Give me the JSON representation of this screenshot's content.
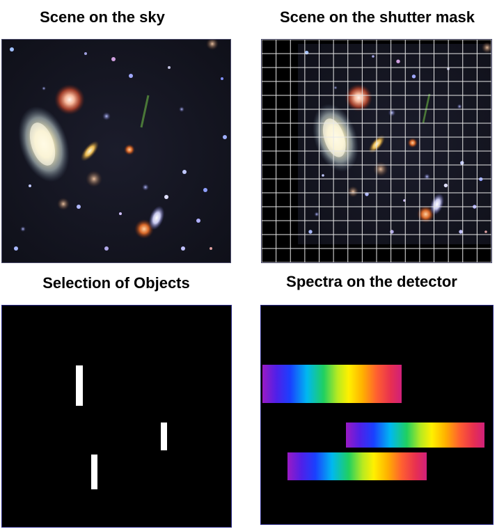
{
  "titles": {
    "sky": "Scene on the sky",
    "mask": "Scene on the shutter mask",
    "selection": "Selection of Objects",
    "detector": "Spectra on the detector"
  },
  "colors": {
    "background": "#ffffff",
    "panel_fill": "#000000",
    "grid_line": "#e8e8e8",
    "slit": "#ffffff",
    "spectrum_gradient": [
      "#9a1ac4",
      "#5020e8",
      "#1a40ff",
      "#00b8f0",
      "#20d060",
      "#b8ea20",
      "#fff000",
      "#ffb000",
      "#ff6030",
      "#e83050",
      "#d0207a"
    ]
  },
  "mask_grid": {
    "columns": 16,
    "rows": 16
  },
  "selection": {
    "slit_count": 3
  },
  "detector": {
    "spectrum_count": 3
  }
}
